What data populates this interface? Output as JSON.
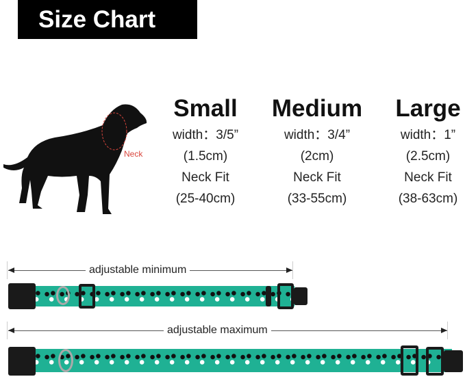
{
  "title": "Size Chart",
  "neck_label": "Neck",
  "sizes": [
    {
      "name": "Small",
      "width": "width：3/5”",
      "width_cm": "(1.5cm)",
      "fit_label": "Neck Fit",
      "fit": "(25-40cm)"
    },
    {
      "name": "Medium",
      "width": "width：3/4”",
      "width_cm": "(2cm)",
      "fit_label": "Neck Fit",
      "fit": "(33-55cm)"
    },
    {
      "name": "Large",
      "width": "width：1”",
      "width_cm": "(2.5cm)",
      "fit_label": "Neck Fit",
      "fit": "(38-63cm)"
    }
  ],
  "collars": {
    "min_label": "adjustable minimum",
    "max_label": "adjustable maximum"
  },
  "colors": {
    "strap": "#1fb194",
    "neck_marker": "#d9453c"
  }
}
